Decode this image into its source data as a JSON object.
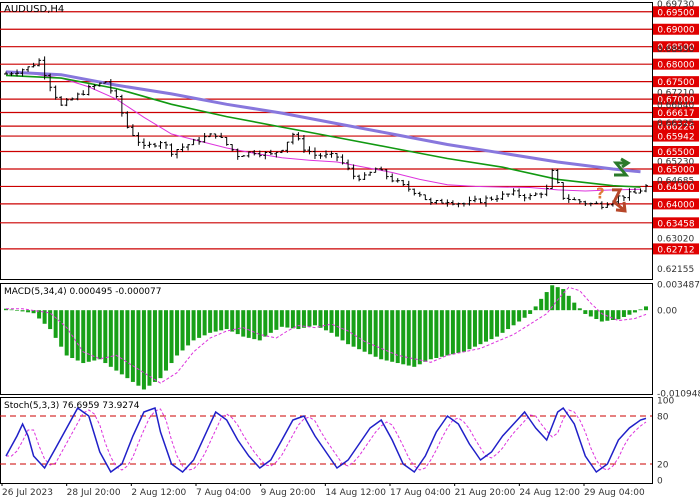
{
  "chart_data": {
    "type": "candlestick",
    "symbol_label": "AUDUSD,H4",
    "x_tick_labels": [
      "26 Jul 2023",
      "28 Jul 20:00",
      "2 Aug 12:00",
      "7 Aug 04:00",
      "9 Aug 20:00",
      "14 Aug 12:00",
      "17 Aug 04:00",
      "21 Aug 20:00",
      "24 Aug 12:00",
      "29 Aug 04:00"
    ],
    "main_panel": {
      "ylim": [
        0.6185,
        0.6978
      ],
      "y_tick_labels": [
        {
          "value": 0.6973,
          "label": "0.69730"
        },
        {
          "value": 0.6845,
          "label": "0.68450"
        },
        {
          "value": 0.6721,
          "label": "0.67210"
        },
        {
          "value": 0.6684,
          "label": "0.66840"
        },
        {
          "value": 0.66325,
          "label": "0.66325"
        },
        {
          "value": 0.6523,
          "label": "0.65230"
        },
        {
          "value": 0.64685,
          "label": "0.64685"
        },
        {
          "value": 0.6302,
          "label": "0.63020"
        },
        {
          "value": 0.62155,
          "label": "0.62155"
        }
      ],
      "levels": [
        {
          "value": 0.695,
          "label": "0.69500"
        },
        {
          "value": 0.69,
          "label": "0.69000"
        },
        {
          "value": 0.685,
          "label": "0.68500"
        },
        {
          "value": 0.68,
          "label": "0.68000"
        },
        {
          "value": 0.675,
          "label": "0.67500"
        },
        {
          "value": 0.67,
          "label": "0.67000"
        },
        {
          "value": 0.66617,
          "label": "0.66617"
        },
        {
          "value": 0.66226,
          "label": "0.66226"
        },
        {
          "value": 0.65942,
          "label": "0.65942"
        },
        {
          "value": 0.655,
          "label": "0.65500"
        },
        {
          "value": 0.65,
          "label": "0.65000"
        },
        {
          "value": 0.645,
          "label": "0.64500"
        },
        {
          "value": 0.64,
          "label": "0.64000"
        },
        {
          "value": 0.63458,
          "label": "0.63458"
        },
        {
          "value": 0.62712,
          "label": "0.62712"
        }
      ],
      "moving_averages": [
        {
          "color": "#dd33dd",
          "points": [
            [
              0,
              0.6778
            ],
            [
              5,
              0.6772
            ],
            [
              10,
              0.676
            ],
            [
              15,
              0.6735
            ],
            [
              20,
              0.67
            ],
            [
              25,
              0.6648
            ],
            [
              30,
              0.66
            ],
            [
              35,
              0.658
            ],
            [
              40,
              0.656
            ],
            [
              45,
              0.6545
            ],
            [
              50,
              0.6532
            ],
            [
              55,
              0.6525
            ],
            [
              60,
              0.652
            ],
            [
              65,
              0.6505
            ],
            [
              70,
              0.649
            ],
            [
              75,
              0.647
            ],
            [
              80,
              0.6455
            ],
            [
              85,
              0.645
            ],
            [
              90,
              0.6448
            ],
            [
              95,
              0.6447
            ],
            [
              100,
              0.644
            ],
            [
              105,
              0.6437
            ],
            [
              110,
              0.644
            ],
            [
              115,
              0.6442
            ]
          ]
        },
        {
          "color": "#119911",
          "points": [
            [
              0,
              0.6768
            ],
            [
              10,
              0.676
            ],
            [
              20,
              0.673
            ],
            [
              30,
              0.6685
            ],
            [
              40,
              0.665
            ],
            [
              50,
              0.662
            ],
            [
              60,
              0.659
            ],
            [
              70,
              0.656
            ],
            [
              80,
              0.653
            ],
            [
              90,
              0.6505
            ],
            [
              100,
              0.647
            ],
            [
              110,
              0.6452
            ],
            [
              115,
              0.6448
            ]
          ]
        },
        {
          "color": "#8877dd",
          "points": [
            [
              0,
              0.6778
            ],
            [
              10,
              0.677
            ],
            [
              20,
              0.674
            ],
            [
              30,
              0.6715
            ],
            [
              40,
              0.6685
            ],
            [
              50,
              0.666
            ],
            [
              60,
              0.663
            ],
            [
              70,
              0.66
            ],
            [
              80,
              0.657
            ],
            [
              90,
              0.6545
            ],
            [
              100,
              0.652
            ],
            [
              110,
              0.65
            ],
            [
              115,
              0.6492
            ]
          ]
        }
      ],
      "price_path": [
        [
          0,
          0.6772
        ],
        [
          4,
          0.679
        ],
        [
          6,
          0.681
        ],
        [
          8,
          0.674
        ],
        [
          10,
          0.668
        ],
        [
          12,
          0.67
        ],
        [
          15,
          0.673
        ],
        [
          18,
          0.675
        ],
        [
          20,
          0.67
        ],
        [
          22,
          0.662
        ],
        [
          25,
          0.656
        ],
        [
          28,
          0.658
        ],
        [
          30,
          0.655
        ],
        [
          33,
          0.657
        ],
        [
          36,
          0.659
        ],
        [
          38,
          0.66
        ],
        [
          40,
          0.657
        ],
        [
          42,
          0.654
        ],
        [
          45,
          0.655
        ],
        [
          48,
          0.654
        ],
        [
          50,
          0.656
        ],
        [
          52,
          0.66
        ],
        [
          54,
          0.656
        ],
        [
          56,
          0.654
        ],
        [
          60,
          0.6535
        ],
        [
          63,
          0.648
        ],
        [
          65,
          0.6475
        ],
        [
          67,
          0.65
        ],
        [
          70,
          0.647
        ],
        [
          72,
          0.645
        ],
        [
          75,
          0.643
        ],
        [
          77,
          0.64
        ],
        [
          80,
          0.641
        ],
        [
          83,
          0.64
        ],
        [
          86,
          0.641
        ],
        [
          89,
          0.642
        ],
        [
          92,
          0.643
        ],
        [
          95,
          0.642
        ],
        [
          98,
          0.644
        ],
        [
          99,
          0.649
        ],
        [
          101,
          0.642
        ],
        [
          103,
          0.641
        ],
        [
          106,
          0.64
        ],
        [
          108,
          0.6398
        ],
        [
          111,
          0.642
        ],
        [
          114,
          0.643
        ],
        [
          116,
          0.645
        ]
      ],
      "arrows": [
        {
          "direction": "up",
          "color": "#2a7a2a"
        },
        {
          "direction": "down",
          "color": "#b7472a"
        }
      ],
      "question_mark": "?"
    },
    "macd_panel": {
      "label": "MACD(5,34,4) 0.000495 -0.000077",
      "ylim": [
        -0.0111,
        0.0036
      ],
      "y_tick_labels": [
        {
          "value": 0.003487,
          "label": "0.003487"
        },
        {
          "value": 0.0,
          "label": "0.00"
        },
        {
          "value": -0.010948,
          "label": "-0.010948"
        }
      ],
      "histogram": [
        [
          0,
          0.0002
        ],
        [
          5,
          -0.0004
        ],
        [
          8,
          -0.0025
        ],
        [
          11,
          -0.006
        ],
        [
          14,
          -0.007
        ],
        [
          17,
          -0.0065
        ],
        [
          20,
          -0.008
        ],
        [
          23,
          -0.0095
        ],
        [
          25,
          -0.0105
        ],
        [
          28,
          -0.009
        ],
        [
          31,
          -0.006
        ],
        [
          34,
          -0.004
        ],
        [
          37,
          -0.003
        ],
        [
          40,
          -0.0025
        ],
        [
          43,
          -0.0035
        ],
        [
          46,
          -0.004
        ],
        [
          48,
          -0.003
        ],
        [
          50,
          -0.0022
        ],
        [
          53,
          -0.0025
        ],
        [
          56,
          -0.002
        ],
        [
          59,
          -0.003
        ],
        [
          62,
          -0.0045
        ],
        [
          65,
          -0.0055
        ],
        [
          68,
          -0.0065
        ],
        [
          71,
          -0.007
        ],
        [
          74,
          -0.0075
        ],
        [
          77,
          -0.0065
        ],
        [
          80,
          -0.006
        ],
        [
          83,
          -0.0055
        ],
        [
          86,
          -0.0045
        ],
        [
          89,
          -0.0035
        ],
        [
          92,
          -0.002
        ],
        [
          95,
          -0.0005
        ],
        [
          97,
          0.0015
        ],
        [
          99,
          0.0033
        ],
        [
          101,
          0.0028
        ],
        [
          103,
          0.001
        ],
        [
          105,
          -0.0005
        ],
        [
          108,
          -0.0015
        ],
        [
          111,
          -0.0012
        ],
        [
          114,
          -0.0003
        ],
        [
          116,
          0.0005
        ]
      ],
      "signal_color": "#dd33dd",
      "bar_color": "#18a018"
    },
    "stoch_panel": {
      "label": "Stoch(5,3,3) 76.6959 73.9274",
      "ylim": [
        0,
        100
      ],
      "y_tick_labels": [
        {
          "value": 100,
          "label": "100"
        },
        {
          "value": 80,
          "label": "80"
        },
        {
          "value": 20,
          "label": "20"
        },
        {
          "value": 0,
          "label": "0"
        }
      ],
      "levels": [
        80,
        20
      ],
      "main": [
        [
          0,
          30
        ],
        [
          2,
          55
        ],
        [
          3,
          70
        ],
        [
          4,
          55
        ],
        [
          5,
          30
        ],
        [
          7,
          15
        ],
        [
          9,
          40
        ],
        [
          11,
          65
        ],
        [
          13,
          90
        ],
        [
          15,
          80
        ],
        [
          17,
          35
        ],
        [
          19,
          10
        ],
        [
          21,
          20
        ],
        [
          23,
          55
        ],
        [
          25,
          85
        ],
        [
          27,
          90
        ],
        [
          28,
          60
        ],
        [
          30,
          20
        ],
        [
          32,
          10
        ],
        [
          34,
          25
        ],
        [
          36,
          55
        ],
        [
          38,
          85
        ],
        [
          40,
          75
        ],
        [
          42,
          50
        ],
        [
          44,
          30
        ],
        [
          46,
          15
        ],
        [
          48,
          25
        ],
        [
          50,
          50
        ],
        [
          52,
          75
        ],
        [
          54,
          80
        ],
        [
          56,
          55
        ],
        [
          58,
          35
        ],
        [
          60,
          15
        ],
        [
          62,
          25
        ],
        [
          64,
          45
        ],
        [
          66,
          65
        ],
        [
          68,
          75
        ],
        [
          70,
          50
        ],
        [
          72,
          20
        ],
        [
          74,
          10
        ],
        [
          76,
          30
        ],
        [
          78,
          60
        ],
        [
          80,
          80
        ],
        [
          82,
          70
        ],
        [
          84,
          45
        ],
        [
          86,
          25
        ],
        [
          88,
          35
        ],
        [
          90,
          55
        ],
        [
          92,
          70
        ],
        [
          94,
          85
        ],
        [
          96,
          65
        ],
        [
          98,
          50
        ],
        [
          100,
          85
        ],
        [
          101,
          90
        ],
        [
          103,
          70
        ],
        [
          105,
          30
        ],
        [
          107,
          10
        ],
        [
          109,
          20
        ],
        [
          111,
          50
        ],
        [
          113,
          65
        ],
        [
          115,
          75
        ],
        [
          116,
          77
        ]
      ],
      "main_color": "#2020c8",
      "signal_color": "#dd33dd"
    }
  }
}
